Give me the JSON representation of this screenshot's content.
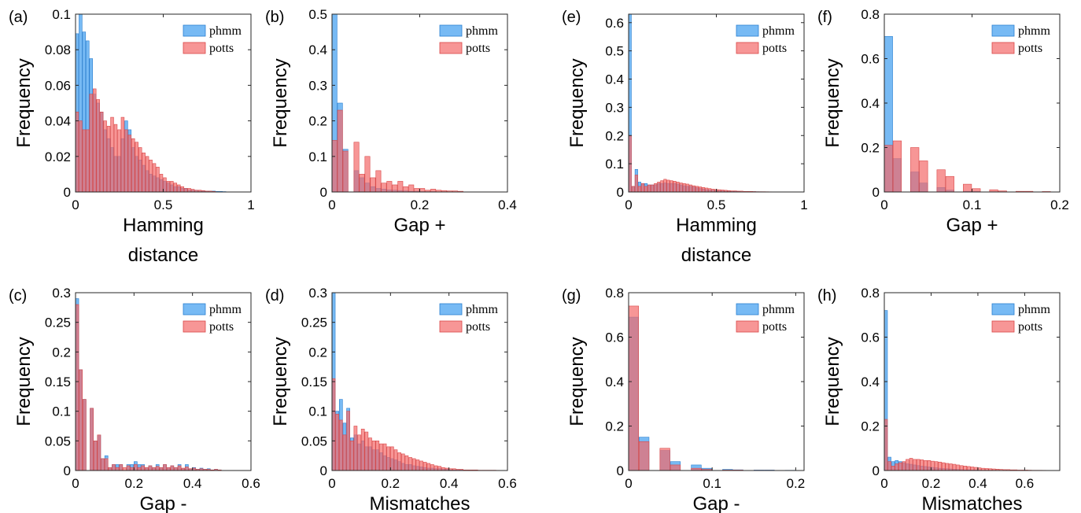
{
  "colors": {
    "phmm_fill": "#3d9cf0",
    "phmm_stroke": "#2a7fd0",
    "potts_fill": "#f46a6a",
    "potts_stroke": "#d94848",
    "bar_opacity": 0.7
  },
  "chart_data": [
    {
      "type": "bar",
      "panel": "(a)",
      "xlabel": [
        "Hamming",
        "distance"
      ],
      "ylabel": "Frequency",
      "xlim": [
        0,
        1
      ],
      "ylim": [
        0,
        0.1
      ],
      "xticks": [
        "0",
        "0.5",
        "1"
      ],
      "yticks": [
        "0",
        "0.02",
        "0.04",
        "0.06",
        "0.08",
        "0.1"
      ],
      "legend": [
        "phmm",
        "potts"
      ],
      "legend_position": "top-right",
      "bin_width": 0.02,
      "series": [
        {
          "name": "phmm",
          "values": [
            0.089,
            0.1,
            0.09,
            0.085,
            0.075,
            0.055,
            0.05,
            0.045,
            0.035,
            0.03,
            0.025,
            0.02,
            0.02,
            0.03,
            0.04,
            0.035,
            0.025,
            0.02,
            0.018,
            0.015,
            0.012,
            0.01,
            0.009,
            0.008,
            0.007,
            0.006,
            0.005,
            0.004,
            0.003,
            0.003,
            0.002,
            0.002,
            0.001,
            0.001,
            0.001,
            0.0005,
            0.0005,
            0.0005,
            0.0005,
            0.0005,
            0.0003,
            0.0003,
            0.0002
          ]
        },
        {
          "name": "potts",
          "values": [
            0.045,
            0.04,
            0.035,
            0.035,
            0.055,
            0.058,
            0.052,
            0.045,
            0.04,
            0.037,
            0.042,
            0.038,
            0.035,
            0.042,
            0.035,
            0.032,
            0.03,
            0.028,
            0.025,
            0.022,
            0.02,
            0.018,
            0.016,
            0.014,
            0.01,
            0.008,
            0.006,
            0.006,
            0.005,
            0.004,
            0.003,
            0.002,
            0.002,
            0.0015,
            0.001,
            0.001,
            0.0008,
            0.0005,
            0.0005,
            0.0003
          ]
        }
      ]
    },
    {
      "type": "bar",
      "panel": "(b)",
      "xlabel": [
        "Gap +"
      ],
      "ylabel": "Frequency",
      "xlim": [
        0,
        0.4
      ],
      "ylim": [
        0,
        0.5
      ],
      "xticks": [
        "0",
        "0.2",
        "0.4"
      ],
      "yticks": [
        "0",
        "0.1",
        "0.2",
        "0.3",
        "0.4",
        "0.5"
      ],
      "legend": [
        "phmm",
        "potts"
      ],
      "legend_position": "top-right",
      "bin_width": 0.0125,
      "series": [
        {
          "name": "phmm",
          "values": [
            0.5,
            0.25,
            0.12,
            0.0,
            0.06,
            0.04,
            0.025,
            0.015,
            0.01,
            0.008,
            0.006,
            0.005,
            0.004,
            0.003,
            0.002,
            0.002,
            0.001,
            0.001,
            0.001,
            0.0005,
            0.0005
          ]
        },
        {
          "name": "potts",
          "values": [
            0.145,
            0.23,
            0.115,
            0.0,
            0.14,
            0.05,
            0.1,
            0.04,
            0.06,
            0.025,
            0.03,
            0.02,
            0.03,
            0.015,
            0.02,
            0.01,
            0.01,
            0.005,
            0.008,
            0.005,
            0.004,
            0.003,
            0.003,
            0.002
          ]
        }
      ]
    },
    {
      "type": "bar",
      "panel": "(c)",
      "xlabel": [
        "Gap -"
      ],
      "ylabel": "Frequency",
      "xlim": [
        0,
        0.6
      ],
      "ylim": [
        0,
        0.3
      ],
      "xticks": [
        "0",
        "0.2",
        "0.4",
        "0.6"
      ],
      "yticks": [
        "0",
        "0.05",
        "0.1",
        "0.15",
        "0.2",
        "0.25",
        "0.3"
      ],
      "legend": [
        "phmm",
        "potts"
      ],
      "legend_position": "top-right",
      "bin_width": 0.0125,
      "series": [
        {
          "name": "phmm",
          "values": [
            0.29,
            0.17,
            0.12,
            0.0,
            0.105,
            0.05,
            0.06,
            0.02,
            0.025,
            0.005,
            0.01,
            0.01,
            0.01,
            0.0,
            0.01,
            0.01,
            0.015,
            0.01,
            0.01,
            0.005,
            0.008,
            0.005,
            0.01,
            0.005,
            0.01,
            0.005,
            0.008,
            0.005,
            0.01,
            0.003,
            0.01,
            0.003,
            0.005,
            0.002,
            0.004,
            0.002,
            0.003,
            0.001,
            0.002,
            0.001
          ]
        },
        {
          "name": "potts",
          "values": [
            0.28,
            0.17,
            0.12,
            0.0,
            0.105,
            0.05,
            0.06,
            0.02,
            0.02,
            0.005,
            0.01,
            0.005,
            0.01,
            0.005,
            0.008,
            0.005,
            0.01,
            0.005,
            0.008,
            0.005,
            0.008,
            0.005,
            0.007,
            0.005,
            0.01,
            0.005,
            0.008,
            0.005,
            0.008,
            0.004,
            0.006,
            0.003,
            0.004,
            0.002,
            0.003,
            0.002,
            0.002,
            0.001,
            0.002,
            0.001
          ]
        }
      ]
    },
    {
      "type": "bar",
      "panel": "(d)",
      "xlabel": [
        "Mismatches"
      ],
      "ylabel": "Frequency",
      "xlim": [
        0,
        0.6
      ],
      "ylim": [
        0,
        0.3
      ],
      "xticks": [
        "0",
        "0.2",
        "0.4",
        "0.6"
      ],
      "yticks": [
        "0",
        "0.05",
        "0.1",
        "0.15",
        "0.2",
        "0.25",
        "0.3"
      ],
      "legend": [
        "phmm",
        "potts"
      ],
      "legend_position": "top-right",
      "bin_width": 0.0125,
      "series": [
        {
          "name": "phmm",
          "values": [
            0.3,
            0.1,
            0.12,
            0.08,
            0.105,
            0.055,
            0.06,
            0.045,
            0.05,
            0.04,
            0.04,
            0.035,
            0.035,
            0.03,
            0.025,
            0.022,
            0.02,
            0.018,
            0.015,
            0.012,
            0.01,
            0.01,
            0.008,
            0.007,
            0.006,
            0.005,
            0.004,
            0.004,
            0.003,
            0.003,
            0.002,
            0.002,
            0.001,
            0.001,
            0.001,
            0.001,
            0.0005,
            0.0005,
            0.0005,
            0.0005
          ]
        },
        {
          "name": "potts",
          "values": [
            0.155,
            0.095,
            0.085,
            0.06,
            0.1,
            0.05,
            0.075,
            0.06,
            0.07,
            0.065,
            0.055,
            0.05,
            0.05,
            0.045,
            0.045,
            0.04,
            0.04,
            0.035,
            0.03,
            0.028,
            0.025,
            0.022,
            0.02,
            0.018,
            0.016,
            0.014,
            0.012,
            0.01,
            0.008,
            0.007,
            0.005,
            0.004,
            0.003,
            0.003,
            0.002,
            0.002,
            0.001,
            0.001,
            0.001,
            0.001,
            0.0005,
            0.0005,
            0.0005,
            0.0005,
            0.0005,
            0.0003
          ]
        }
      ]
    },
    {
      "type": "bar",
      "panel": "(e)",
      "xlabel": [
        "Hamming",
        "distance"
      ],
      "ylabel": "Frequency",
      "xlim": [
        0,
        1
      ],
      "ylim": [
        0,
        0.63
      ],
      "xticks": [
        "0",
        "0.5",
        "1"
      ],
      "yticks": [
        "0",
        "0.1",
        "0.2",
        "0.3",
        "0.4",
        "0.5",
        "0.6"
      ],
      "legend": [
        "phmm",
        "potts"
      ],
      "legend_position": "top-right",
      "bin_width": 0.0182,
      "series": [
        {
          "name": "phmm",
          "values": [
            0.63,
            0.02,
            0.08,
            0.035,
            0.03,
            0.03,
            0.025,
            0.025,
            0.025,
            0.03,
            0.03,
            0.032,
            0.03,
            0.03,
            0.03,
            0.028,
            0.025,
            0.022,
            0.02,
            0.02,
            0.018,
            0.015,
            0.012,
            0.01,
            0.008,
            0.007,
            0.006,
            0.005,
            0.004,
            0.004,
            0.003,
            0.003,
            0.002,
            0.002,
            0.002,
            0.001,
            0.001,
            0.001,
            0.001,
            0.001,
            0.0008,
            0.0006,
            0.0005,
            0.0005,
            0.0004,
            0.0003,
            0.0003
          ]
        },
        {
          "name": "potts",
          "values": [
            0.2,
            0.02,
            0.06,
            0.02,
            0.03,
            0.02,
            0.025,
            0.025,
            0.03,
            0.035,
            0.04,
            0.045,
            0.042,
            0.04,
            0.038,
            0.035,
            0.032,
            0.03,
            0.028,
            0.025,
            0.022,
            0.02,
            0.018,
            0.016,
            0.014,
            0.012,
            0.01,
            0.009,
            0.008,
            0.007,
            0.006,
            0.005,
            0.004,
            0.004,
            0.003,
            0.003,
            0.002,
            0.002,
            0.002,
            0.0015,
            0.001,
            0.001,
            0.001,
            0.0008,
            0.0006,
            0.0005,
            0.0005
          ]
        }
      ]
    },
    {
      "type": "bar",
      "panel": "(f)",
      "xlabel": [
        "Gap +"
      ],
      "ylabel": "Frequency",
      "xlim": [
        0,
        0.2
      ],
      "ylim": [
        0,
        0.8
      ],
      "xticks": [
        "0",
        "0.1",
        "0.2"
      ],
      "yticks": [
        "0",
        "0.2",
        "0.4",
        "0.6",
        "0.8"
      ],
      "legend": [
        "phmm",
        "potts"
      ],
      "legend_position": "top-right",
      "bin_width": 0.01,
      "series": [
        {
          "name": "phmm",
          "values": [
            0.7,
            0.15,
            0.0,
            0.09,
            0.04,
            0.0,
            0.02,
            0.008,
            0.0,
            0.003,
            0.002,
            0.0,
            0.001,
            0.001,
            0.0,
            0.0005,
            0.0005,
            0.0,
            0.0003
          ]
        },
        {
          "name": "potts",
          "values": [
            0.21,
            0.23,
            0.0,
            0.2,
            0.14,
            0.0,
            0.1,
            0.07,
            0.0,
            0.035,
            0.015,
            0.0,
            0.01,
            0.005,
            0.0,
            0.003,
            0.003,
            0.0,
            0.002
          ]
        }
      ]
    },
    {
      "type": "bar",
      "panel": "(g)",
      "xlabel": [
        "Gap -"
      ],
      "ylabel": "Frequency",
      "xlim": [
        0,
        0.21
      ],
      "ylim": [
        0,
        0.8
      ],
      "xticks": [
        "0",
        "0.1",
        "0.2"
      ],
      "yticks": [
        "0",
        "0.2",
        "0.4",
        "0.6",
        "0.8"
      ],
      "legend": [
        "phmm",
        "potts"
      ],
      "legend_position": "top-right",
      "bin_width": 0.0125,
      "series": [
        {
          "name": "phmm",
          "values": [
            0.69,
            0.15,
            0.0,
            0.09,
            0.04,
            0.0,
            0.025,
            0.01,
            0.0,
            0.005,
            0.003,
            0.0,
            0.002,
            0.002,
            0.0,
            0.001
          ]
        },
        {
          "name": "potts",
          "values": [
            0.74,
            0.13,
            0.0,
            0.1,
            0.025,
            0.0,
            0.01,
            0.005,
            0.0,
            0.002,
            0.002,
            0.0,
            0.001,
            0.001,
            0.0,
            0.0005
          ]
        }
      ]
    },
    {
      "type": "bar",
      "panel": "(h)",
      "xlabel": [
        "Mismatches"
      ],
      "ylabel": "Frequency",
      "xlim": [
        0,
        0.75
      ],
      "ylim": [
        0,
        0.8
      ],
      "xticks": [
        "0",
        "0.2",
        "0.4",
        "0.6"
      ],
      "yticks": [
        "0",
        "0.2",
        "0.4",
        "0.6",
        "0.8"
      ],
      "legend": [
        "phmm",
        "potts"
      ],
      "legend_position": "top-right",
      "bin_width": 0.0154,
      "series": [
        {
          "name": "phmm",
          "values": [
            0.72,
            0.06,
            0.04,
            0.045,
            0.04,
            0.035,
            0.03,
            0.028,
            0.025,
            0.022,
            0.02,
            0.018,
            0.016,
            0.014,
            0.012,
            0.01,
            0.009,
            0.008,
            0.007,
            0.006,
            0.005,
            0.004,
            0.003,
            0.003,
            0.002,
            0.002,
            0.0015,
            0.001,
            0.001,
            0.001,
            0.0008,
            0.0006,
            0.0005,
            0.0004,
            0.0003
          ]
        },
        {
          "name": "potts",
          "values": [
            0.23,
            0.04,
            0.02,
            0.03,
            0.035,
            0.04,
            0.05,
            0.055,
            0.05,
            0.05,
            0.048,
            0.045,
            0.045,
            0.042,
            0.04,
            0.038,
            0.035,
            0.032,
            0.03,
            0.028,
            0.025,
            0.022,
            0.02,
            0.018,
            0.016,
            0.014,
            0.012,
            0.01,
            0.009,
            0.008,
            0.007,
            0.006,
            0.005,
            0.004,
            0.004,
            0.003,
            0.003,
            0.002,
            0.002,
            0.002,
            0.0015,
            0.001,
            0.001,
            0.001,
            0.0008,
            0.0006,
            0.0005,
            0.0005
          ]
        }
      ]
    }
  ]
}
